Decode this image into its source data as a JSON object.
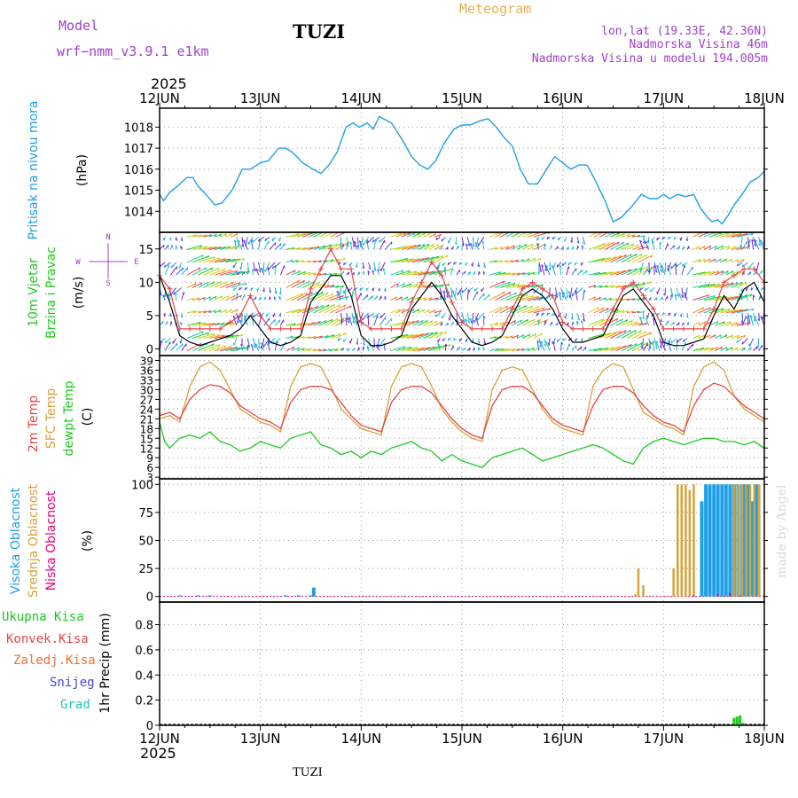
{
  "header": {
    "model_label": "Model",
    "model_name": "wrf−nmm_v3.9.1  e1km",
    "location": "TUZI",
    "title": "Meteogram",
    "lonlat": "lon,lat (19.33E, 42.36N)",
    "altitude": "Nadmorska Visina 46m",
    "model_altitude": "Nadmorska Visina u modelu 194.005m",
    "year_top": "2025",
    "year_bottom": "2025",
    "footer_location": "TUZI",
    "credit": "made by Angel"
  },
  "colors": {
    "pressure": "#1ea0e6",
    "dewpoint": "#22c822",
    "temp2m": "#e64646",
    "sfc": "#d8a23a",
    "cloud_high": "#1ea0e6",
    "cloud_mid": "#d8a23a",
    "cloud_low": "#e6007e",
    "rain_total": "#22c822",
    "rain_conv": "#e64646",
    "rain_frozen": "#f07030",
    "snow": "#4646d8",
    "hail": "#1ec8b4",
    "header_purple": "#a040c8",
    "header_orange": "#e8b050"
  },
  "chart_data": [
    {
      "type": "line",
      "panel": "pressure",
      "ylabel_main": "Pritisak na nivou mora",
      "ylabel_unit": "(hPa)",
      "xticks": [
        "12JUN",
        "13JUN",
        "14JUN",
        "15JUN",
        "16JUN",
        "17JUN",
        "18JUN"
      ],
      "xlim_days": [
        0,
        6
      ],
      "ylim": [
        1013,
        1018.9
      ],
      "yticks": [
        1014,
        1015,
        1016,
        1017,
        1018
      ],
      "series": [
        {
          "x": [
            0,
            0.04,
            0.1,
            0.18,
            0.27,
            0.33,
            0.38,
            0.46,
            0.55,
            0.62,
            0.72,
            0.82,
            0.9,
            1.0,
            1.08,
            1.18,
            1.25,
            1.32,
            1.42,
            1.52,
            1.6,
            1.68,
            1.76,
            1.85,
            1.92,
            1.98,
            2.06,
            2.12,
            2.18,
            2.3,
            2.42,
            2.5,
            2.58,
            2.66,
            2.74,
            2.82,
            2.92,
            3.0,
            3.08,
            3.18,
            3.26,
            3.34,
            3.42,
            3.5,
            3.58,
            3.66,
            3.75,
            3.84,
            3.92,
            4.0,
            4.08,
            4.16,
            4.24,
            4.32,
            4.42,
            4.5,
            4.58,
            4.68,
            4.78,
            4.86,
            4.94,
            5.0,
            5.06,
            5.14,
            5.22,
            5.3,
            5.36,
            5.42,
            5.48,
            5.54,
            5.58,
            5.64,
            5.7,
            5.78,
            5.86,
            5.94,
            6.0
          ],
          "y": [
            1014.8,
            1014.5,
            1014.9,
            1015.2,
            1015.6,
            1015.6,
            1015.2,
            1014.8,
            1014.3,
            1014.4,
            1015.0,
            1016.0,
            1016.0,
            1016.3,
            1016.4,
            1017.0,
            1017.0,
            1016.8,
            1016.3,
            1016.0,
            1015.8,
            1016.2,
            1016.8,
            1018.0,
            1018.2,
            1018.0,
            1018.2,
            1017.9,
            1018.5,
            1018.2,
            1017.3,
            1016.6,
            1016.2,
            1016.0,
            1016.4,
            1017.2,
            1017.9,
            1018.1,
            1018.1,
            1018.3,
            1018.4,
            1018.0,
            1017.5,
            1017.1,
            1016.0,
            1015.3,
            1015.3,
            1016.0,
            1016.6,
            1016.3,
            1016.0,
            1016.2,
            1016.2,
            1015.5,
            1014.5,
            1013.5,
            1013.7,
            1014.2,
            1014.8,
            1014.6,
            1014.6,
            1014.8,
            1014.6,
            1014.8,
            1014.7,
            1014.8,
            1014.2,
            1013.8,
            1013.5,
            1013.6,
            1013.4,
            1013.8,
            1014.3,
            1014.8,
            1015.4,
            1015.6,
            1015.9
          ]
        }
      ]
    },
    {
      "type": "line",
      "panel": "wind",
      "ylabel_main1": "10m Vjetar",
      "ylabel_main2": "Brzina i Pravac",
      "ylabel_unit": "(m/s)",
      "compass": {
        "n": "N",
        "s": "S",
        "e": "E",
        "w": "W"
      },
      "ylim": [
        -1,
        17.5
      ],
      "yticks": [
        0,
        5,
        10,
        15
      ],
      "series": [
        {
          "name": "speed",
          "x": [
            0,
            0.1,
            0.2,
            0.3,
            0.4,
            0.5,
            0.6,
            0.7,
            0.8,
            0.9,
            1.0,
            1.1,
            1.2,
            1.3,
            1.4,
            1.5,
            1.6,
            1.7,
            1.8,
            1.9,
            2.0,
            2.1,
            2.2,
            2.3,
            2.4,
            2.5,
            2.6,
            2.7,
            2.8,
            2.9,
            3.0,
            3.1,
            3.2,
            3.3,
            3.4,
            3.5,
            3.6,
            3.7,
            3.8,
            3.9,
            4.0,
            4.1,
            4.2,
            4.3,
            4.4,
            4.5,
            4.6,
            4.7,
            4.8,
            4.9,
            5.0,
            5.1,
            5.2,
            5.3,
            5.4,
            5.5,
            5.6,
            5.7,
            5.8,
            5.9,
            6.0
          ],
          "y": [
            11,
            7,
            2,
            1,
            0.5,
            1,
            1.5,
            2,
            3,
            5,
            3,
            1,
            0.5,
            1,
            2,
            7,
            9,
            11,
            11,
            8,
            2,
            0.5,
            0.5,
            1,
            2,
            6,
            8,
            10,
            8,
            5,
            3,
            1,
            0.5,
            1,
            2,
            5,
            8,
            9,
            8,
            6,
            3,
            1,
            1,
            1.5,
            2,
            5,
            8,
            9,
            7,
            5,
            1,
            0.5,
            0.5,
            1,
            1.5,
            5,
            8,
            6,
            9,
            10,
            7
          ]
        },
        {
          "name": "gust",
          "x": [
            0,
            0.1,
            0.2,
            0.3,
            0.4,
            0.5,
            0.6,
            0.7,
            0.8,
            0.9,
            1.0,
            1.1,
            1.2,
            1.3,
            1.4,
            1.5,
            1.6,
            1.7,
            1.8,
            1.9,
            2.0,
            2.1,
            2.2,
            2.3,
            2.4,
            2.5,
            2.6,
            2.7,
            2.8,
            2.9,
            3.0,
            3.1,
            3.2,
            3.3,
            3.4,
            3.5,
            3.6,
            3.7,
            3.8,
            3.9,
            4.0,
            4.1,
            4.2,
            4.3,
            4.4,
            4.5,
            4.6,
            4.7,
            4.8,
            4.9,
            5.0,
            5.1,
            5.2,
            5.3,
            5.4,
            5.5,
            5.6,
            5.7,
            5.8,
            5.9,
            6.0
          ],
          "y": [
            11,
            9,
            3,
            3,
            3,
            3,
            3,
            4,
            5,
            8,
            5,
            3,
            3,
            3,
            3,
            9,
            12,
            15,
            12,
            12,
            4,
            3,
            3,
            3,
            3,
            7,
            10,
            13,
            11,
            7,
            4,
            3,
            3,
            3,
            3,
            6,
            9,
            10,
            9,
            8,
            4,
            3,
            3,
            3,
            3,
            6,
            9,
            10,
            8,
            6,
            3,
            3,
            3,
            3,
            3,
            6,
            10,
            11,
            12,
            12,
            10
          ]
        }
      ]
    },
    {
      "type": "line",
      "panel": "temperature",
      "ylabel_t2m": "2m Temp",
      "ylabel_sfc": "SFC Temp",
      "ylabel_dew": "dewpt Temp",
      "ylabel_unit": "(C)",
      "ylim": [
        2.5,
        40.5
      ],
      "yticks": [
        3,
        6,
        9,
        12,
        15,
        18,
        21,
        24,
        27,
        30,
        33,
        36,
        39
      ],
      "series": [
        {
          "name": "2m Temp",
          "x": [
            0,
            0.1,
            0.2,
            0.3,
            0.4,
            0.5,
            0.6,
            0.7,
            0.8,
            0.9,
            1.0,
            1.1,
            1.2,
            1.3,
            1.4,
            1.5,
            1.6,
            1.7,
            1.8,
            1.9,
            2.0,
            2.1,
            2.2,
            2.3,
            2.4,
            2.5,
            2.6,
            2.7,
            2.8,
            2.9,
            3.0,
            3.1,
            3.2,
            3.3,
            3.4,
            3.5,
            3.6,
            3.7,
            3.8,
            3.9,
            4.0,
            4.1,
            4.2,
            4.3,
            4.4,
            4.5,
            4.6,
            4.7,
            4.8,
            4.9,
            5.0,
            5.1,
            5.2,
            5.3,
            5.4,
            5.5,
            5.6,
            5.7,
            5.8,
            5.9,
            6.0
          ],
          "y": [
            22,
            23,
            21,
            27,
            30,
            31.5,
            31,
            29,
            25,
            23,
            21,
            20,
            18,
            26,
            30,
            31,
            31,
            30,
            26,
            22,
            19,
            18,
            17,
            26,
            30,
            31,
            31,
            29,
            25,
            21,
            18,
            16,
            15,
            25,
            30,
            31,
            31,
            29,
            25,
            21,
            19,
            18,
            17,
            25,
            30,
            31,
            31,
            29,
            25,
            22,
            20,
            19,
            17,
            25,
            30,
            32,
            31,
            28,
            25,
            23,
            21
          ]
        },
        {
          "name": "SFC Temp",
          "x": [
            0,
            0.1,
            0.2,
            0.3,
            0.4,
            0.5,
            0.6,
            0.7,
            0.8,
            0.9,
            1.0,
            1.1,
            1.2,
            1.3,
            1.4,
            1.5,
            1.6,
            1.7,
            1.8,
            1.9,
            2.0,
            2.1,
            2.2,
            2.3,
            2.4,
            2.5,
            2.6,
            2.7,
            2.8,
            2.9,
            3.0,
            3.1,
            3.2,
            3.3,
            3.4,
            3.5,
            3.6,
            3.7,
            3.8,
            3.9,
            4.0,
            4.1,
            4.2,
            4.3,
            4.4,
            4.5,
            4.6,
            4.7,
            4.8,
            4.9,
            5.0,
            5.1,
            5.2,
            5.3,
            5.4,
            5.5,
            5.6,
            5.7,
            5.8,
            5.9,
            6.0
          ],
          "y": [
            21,
            22,
            20,
            31,
            37,
            38.5,
            36,
            30,
            24,
            22,
            20,
            19,
            17,
            31,
            37,
            38,
            37,
            31,
            24,
            21,
            18,
            17,
            16,
            31,
            37,
            38,
            37,
            31,
            24,
            20,
            17,
            15,
            14,
            30,
            36,
            37,
            36,
            30,
            24,
            20,
            18,
            17,
            16,
            31,
            36,
            38,
            37,
            30,
            23,
            21,
            19,
            18,
            16,
            31,
            37,
            38.5,
            36,
            28,
            24,
            22,
            20
          ]
        },
        {
          "name": "dewpt Temp",
          "x": [
            0,
            0.05,
            0.1,
            0.2,
            0.3,
            0.4,
            0.5,
            0.6,
            0.7,
            0.8,
            0.9,
            1.0,
            1.1,
            1.2,
            1.3,
            1.4,
            1.5,
            1.6,
            1.7,
            1.8,
            1.9,
            2.0,
            2.1,
            2.2,
            2.3,
            2.4,
            2.5,
            2.6,
            2.7,
            2.8,
            2.9,
            3.0,
            3.1,
            3.2,
            3.3,
            3.4,
            3.5,
            3.6,
            3.7,
            3.8,
            3.9,
            4.0,
            4.1,
            4.2,
            4.3,
            4.4,
            4.5,
            4.6,
            4.7,
            4.8,
            4.9,
            5.0,
            5.1,
            5.2,
            5.3,
            5.4,
            5.5,
            5.6,
            5.7,
            5.8,
            5.9,
            6.0
          ],
          "y": [
            20,
            14,
            12,
            15,
            16,
            15,
            17,
            14,
            13,
            11,
            12,
            14,
            13,
            12,
            15,
            16,
            17,
            13,
            12,
            10,
            11,
            9,
            11,
            10,
            12,
            13,
            14,
            12,
            11,
            8,
            10,
            8,
            7,
            6,
            9,
            10,
            11,
            12,
            10,
            8,
            9,
            10,
            11,
            12,
            13,
            12,
            10,
            8,
            7,
            12,
            14,
            15,
            14,
            13,
            14,
            15,
            15,
            14,
            14,
            13,
            14,
            12
          ]
        }
      ]
    },
    {
      "type": "bar",
      "panel": "clouds",
      "ylabel_high": "Visoka Oblacnost",
      "ylabel_mid": "Srednja Oblacnost",
      "ylabel_low": "Niska Oblacnost",
      "ylabel_unit": "(%)",
      "ylim": [
        -5,
        105
      ],
      "yticks": [
        0,
        25,
        50,
        75,
        100
      ],
      "series": [
        {
          "name": "Visoka Oblacnost",
          "x": [
            0.2,
            0.38,
            0.5,
            1.25,
            1.38,
            1.5,
            1.53,
            5.38,
            5.42,
            5.46,
            5.5,
            5.54,
            5.58,
            5.62,
            5.66,
            5.7,
            5.74,
            5.78,
            5.8,
            5.84,
            5.88,
            5.92
          ],
          "y": [
            1,
            1,
            1,
            1,
            1,
            1,
            8,
            85,
            100,
            100,
            100,
            100,
            100,
            100,
            100,
            100,
            100,
            100,
            100,
            100,
            85,
            100
          ]
        },
        {
          "name": "Srednja Oblacnost",
          "x": [
            4.72,
            4.75,
            4.8,
            5.1,
            5.14,
            5.18,
            5.22,
            5.26,
            5.3,
            5.7,
            5.74,
            5.78,
            5.82,
            5.86,
            5.9,
            5.95
          ],
          "y": [
            2,
            25,
            10,
            25,
            100,
            100,
            100,
            95,
            100,
            100,
            100,
            100,
            100,
            100,
            100,
            100
          ]
        },
        {
          "name": "Niska Oblacnost",
          "x": [
            5.3,
            5.54,
            5.66,
            5.76
          ],
          "y": [
            1,
            2,
            3,
            1
          ]
        }
      ]
    },
    {
      "type": "bar",
      "panel": "precip",
      "legend": [
        "Ukupna Kisa",
        "Konvek.Kisa",
        "Zaledj.Kisa",
        "Snijeg",
        "Grad"
      ],
      "ylabel_unit": "1hr Precip (mm)",
      "ylim": [
        0,
        0.98
      ],
      "yticks": [
        0,
        0.2,
        0.4,
        0.6,
        0.8
      ],
      "ytick_labels": [
        "0",
        "0.2",
        "0.4",
        "0.6",
        "0.8"
      ],
      "series": [
        {
          "name": "Ukupna Kisa",
          "x": [
            5.7,
            5.73,
            5.76,
            5.79
          ],
          "y": [
            0.06,
            0.07,
            0.08,
            0.02
          ]
        }
      ]
    }
  ]
}
